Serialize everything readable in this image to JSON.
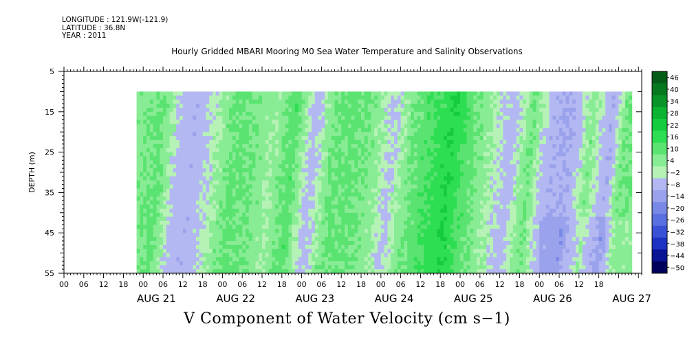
{
  "header": {
    "longitude": "LONGITUDE : 121.9W(-121.9)",
    "latitude": "LATITUDE : 36.8N",
    "year": "YEAR : 2011"
  },
  "chart_data": {
    "type": "heatmap",
    "title": "Hourly Gridded MBARI Mooring M0 Sea Water Temperature and Salinity Observations",
    "xlabel": "V Component of Water Velocity (cm s−1)",
    "ylabel": "DEPTH (m)",
    "y_inverted": true,
    "ylim": [
      5,
      55
    ],
    "y_ticks": [
      5,
      15,
      25,
      35,
      45,
      55
    ],
    "xlim_hours": [
      -18,
      157
    ],
    "x_hour_ticks": [
      "00",
      "06",
      "12",
      "18",
      "00",
      "06",
      "12",
      "18",
      "00",
      "06",
      "12",
      "18",
      "00",
      "06",
      "12",
      "18",
      "00",
      "06",
      "12",
      "18",
      "00",
      "06",
      "12",
      "18",
      "00",
      "06",
      "12",
      "18"
    ],
    "x_day_labels": [
      "AUG 21",
      "AUG 22",
      "AUG 23",
      "AUG 24",
      "AUG 25",
      "AUG 26",
      "AUG 27"
    ],
    "data_extent": {
      "depth_top": 10,
      "depth_bottom": 55,
      "hour_start": 4,
      "hour_end": 154
    },
    "colorbar": {
      "levels": [
        -50,
        -44,
        -38,
        -32,
        -26,
        -20,
        -14,
        -8,
        -2,
        4,
        10,
        16,
        22,
        28,
        34,
        40,
        46
      ],
      "neg_colors": [
        "#00005c",
        "#0a1494",
        "#1e32c2",
        "#3a52d6",
        "#5a70e0",
        "#7888e6",
        "#9aa2ec",
        "#b3b8f2"
      ],
      "pos_colors": [
        "#b6f2b6",
        "#88ec94",
        "#5ae370",
        "#2ede52",
        "#14cc3e",
        "#0cb232",
        "#089428",
        "#067820",
        "#045c18"
      ]
    },
    "time_bands": [
      {
        "hour": 4,
        "value": 8
      },
      {
        "hour": 10,
        "value": 12
      },
      {
        "hour": 16,
        "value": -4
      },
      {
        "hour": 20,
        "value": -6
      },
      {
        "hour": 26,
        "value": 2
      },
      {
        "hour": 32,
        "value": 12
      },
      {
        "hour": 38,
        "value": 10
      },
      {
        "hour": 44,
        "value": 4
      },
      {
        "hour": 50,
        "value": 14
      },
      {
        "hour": 56,
        "value": -4
      },
      {
        "hour": 62,
        "value": 10
      },
      {
        "hour": 68,
        "value": 12
      },
      {
        "hour": 74,
        "value": 8
      },
      {
        "hour": 80,
        "value": -2
      },
      {
        "hour": 86,
        "value": 10
      },
      {
        "hour": 92,
        "value": 16
      },
      {
        "hour": 98,
        "value": 22
      },
      {
        "hour": 104,
        "value": 12
      },
      {
        "hour": 110,
        "value": 4
      },
      {
        "hour": 116,
        "value": -4
      },
      {
        "hour": 122,
        "value": 10
      },
      {
        "hour": 128,
        "value": -6
      },
      {
        "hour": 134,
        "value": -8
      },
      {
        "hour": 140,
        "value": 8
      },
      {
        "hour": 146,
        "value": -8
      },
      {
        "hour": 150,
        "value": 10
      }
    ]
  }
}
